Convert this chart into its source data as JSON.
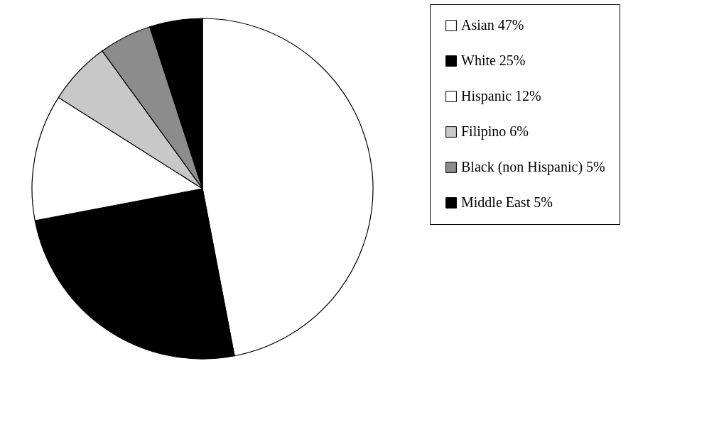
{
  "chart_data": {
    "type": "pie",
    "categories": [
      "Asian 47%",
      "White 25%",
      "Hispanic 12%",
      "Filipino 6%",
      "Black (non Hispanic) 5%",
      "Middle East 5%"
    ],
    "values": [
      47,
      25,
      12,
      6,
      5,
      5
    ],
    "colors": [
      "#ffffff",
      "#000000",
      "#ffffff",
      "#c8c8c8",
      "#8c8c8c",
      "#000000"
    ],
    "legend": "right"
  }
}
